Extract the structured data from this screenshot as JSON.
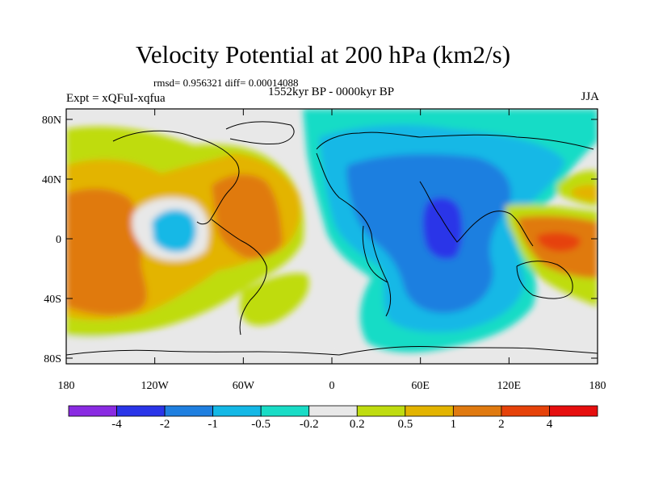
{
  "title": "Velocity Potential at 200 hPa (km2/s)",
  "stats": "rmsd= 0.956321  diff= 0.00014088",
  "subtitle": "1552kyr BP - 0000kyr BP",
  "experiment": "Expt = xQFuI-xqfua",
  "season": "JJA",
  "lat_ticks": [
    "80N",
    "40N",
    "0",
    "40S",
    "80S"
  ],
  "lon_ticks": [
    "180",
    "120W",
    "60W",
    "0",
    "60E",
    "120E",
    "180"
  ],
  "colorbar": {
    "labels": [
      "-4",
      "-2",
      "-1",
      "-0.5",
      "-0.2",
      "0.2",
      "0.5",
      "1",
      "2",
      "4"
    ],
    "colors": [
      "#8a2be2",
      "#2a35e8",
      "#1f7fe0",
      "#14b8e6",
      "#19dcc6",
      "#e8e8e8",
      "#bfdc10",
      "#e3b400",
      "#e07a10",
      "#e6420a",
      "#e60f0f"
    ]
  }
}
